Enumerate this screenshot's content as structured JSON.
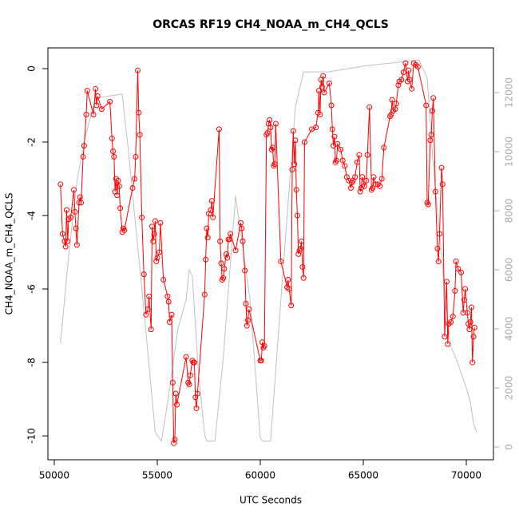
{
  "chart_data": {
    "type": "line",
    "title": "ORCAS RF19 CH4_NOAA_m_CH4_QCLS",
    "x_label": "UTC Seconds",
    "y_label": "CH4_NOAA_m_CH4_QCLS",
    "xlim": [
      49690,
      71318
    ],
    "xticks": [
      50000,
      55000,
      60000,
      65000,
      70000
    ],
    "ylim": [
      -10.65,
      0.565
    ],
    "yticks": [
      0,
      -2,
      -4,
      -6,
      -8,
      -10
    ],
    "y2lim": [
      -432,
      13514
    ],
    "y2ticks": [
      0,
      2000,
      4000,
      6000,
      8000,
      10000,
      12000
    ],
    "series": [
      {
        "color": "#ff0000",
        "marker": "circle",
        "x": [
          50300,
          50400,
          50500,
          50550,
          50600,
          50650,
          50700,
          50800,
          50950,
          51000,
          51050,
          51100,
          51200,
          51250,
          51300,
          51400,
          51450,
          51550,
          51600,
          51900,
          52000,
          52050,
          52100,
          52300,
          52700,
          52800,
          52850,
          52900,
          52950,
          53000,
          53050,
          53100,
          53150,
          53200,
          53300,
          53350,
          53400,
          53800,
          53900,
          53950,
          54050,
          54100,
          54150,
          54250,
          54350,
          54450,
          54550,
          54600,
          54700,
          54750,
          54800,
          54850,
          54900,
          54950,
          55000,
          55100,
          55150,
          55300,
          55500,
          55550,
          55600,
          55700,
          55750,
          55800,
          55850,
          55900,
          55950,
          56400,
          56500,
          56550,
          56600,
          56700,
          56750,
          56800,
          56850,
          56900,
          56950,
          57300,
          57350,
          57400,
          57450,
          57500,
          57600,
          57650,
          57700,
          58000,
          58050,
          58100,
          58150,
          58200,
          58250,
          58350,
          58400,
          58450,
          58500,
          58550,
          58800,
          59050,
          59100,
          59150,
          59250,
          59300,
          59350,
          59400,
          59450,
          60000,
          60050,
          60100,
          60150,
          60200,
          60300,
          60350,
          60400,
          60450,
          60500,
          60550,
          60600,
          60650,
          60700,
          60750,
          61000,
          61300,
          61350,
          61400,
          61500,
          61550,
          61600,
          61650,
          61700,
          61750,
          61800,
          61850,
          61900,
          61950,
          62000,
          62050,
          62100,
          62150,
          62500,
          62700,
          62800,
          62850,
          62900,
          62950,
          63000,
          63050,
          63100,
          63350,
          63450,
          63500,
          63550,
          63600,
          63650,
          63700,
          63750,
          63900,
          64000,
          64100,
          64200,
          64300,
          64400,
          64450,
          64500,
          64600,
          64700,
          64800,
          64850,
          64900,
          64950,
          65050,
          65150,
          65200,
          65300,
          65400,
          65450,
          65500,
          65600,
          65700,
          65800,
          65900,
          66000,
          66300,
          66350,
          66400,
          66450,
          66550,
          66600,
          66700,
          66750,
          66850,
          66950,
          67050,
          67150,
          67200,
          67250,
          67350,
          67450,
          67550,
          67650,
          68050,
          68100,
          68150,
          68250,
          68300,
          68350,
          68400,
          68500,
          68600,
          68650,
          68700,
          68800,
          68850,
          68950,
          69050,
          69100,
          69150,
          69250,
          69350,
          69450,
          69500,
          69600,
          69750,
          69850,
          69900,
          69950,
          70050,
          70100,
          70150,
          70200,
          70250,
          70300,
          70350,
          70400
        ],
        "values": [
          -3.15,
          -4.5,
          -4.7,
          -4.85,
          -3.85,
          -4.7,
          -4.1,
          -4.05,
          -3.3,
          -3.9,
          -4.35,
          -4.8,
          -3.65,
          -3.5,
          -3.65,
          -2.4,
          -2.1,
          -1.25,
          -0.6,
          -1.25,
          -0.55,
          -1.0,
          -0.75,
          -1.1,
          -0.9,
          -1.9,
          -2.25,
          -2.4,
          -3.35,
          -3.0,
          -3.45,
          -3.05,
          -3.2,
          -3.8,
          -4.45,
          -4.35,
          -4.4,
          -3.25,
          -3.0,
          -2.4,
          -0.05,
          -1.2,
          -1.8,
          -4.05,
          -5.6,
          -6.7,
          -6.55,
          -6.2,
          -7.1,
          -4.3,
          -4.7,
          -4.5,
          -4.15,
          -5.25,
          -5.15,
          -5.0,
          -4.2,
          -5.75,
          -6.2,
          -6.35,
          -6.9,
          -6.7,
          -8.55,
          -10.2,
          -10.1,
          -8.85,
          -9.15,
          -7.85,
          -8.55,
          -8.6,
          -8.35,
          -7.95,
          -8.0,
          -8.0,
          -8.95,
          -9.25,
          -8.85,
          -6.15,
          -5.2,
          -4.35,
          -4.6,
          -3.95,
          -3.85,
          -3.6,
          -4.05,
          -1.65,
          -4.7,
          -5.3,
          -5.75,
          -5.7,
          -5.45,
          -5.05,
          -5.15,
          -4.65,
          -4.65,
          -4.5,
          -4.95,
          -4.2,
          -4.35,
          -4.7,
          -5.5,
          -6.4,
          -7.0,
          -6.85,
          -6.55,
          -7.95,
          -7.95,
          -7.45,
          -7.6,
          -7.55,
          -1.8,
          -1.75,
          -1.5,
          -1.4,
          -1.6,
          -2.2,
          -2.15,
          -2.65,
          -2.6,
          -1.5,
          -5.25,
          -5.95,
          -5.75,
          -6.0,
          -6.45,
          -2.75,
          -1.7,
          -2.6,
          -1.95,
          -3.3,
          -4.0,
          -5.05,
          -4.95,
          -4.9,
          -4.7,
          -5.4,
          -5.7,
          -2.0,
          -1.65,
          -1.6,
          -1.2,
          -0.6,
          -1.25,
          -0.3,
          -0.5,
          -0.2,
          -0.65,
          -0.4,
          -1.0,
          -1.65,
          -2.1,
          -1.85,
          -2.55,
          -2.5,
          -2.05,
          -2.2,
          -2.5,
          -2.65,
          -2.95,
          -3.05,
          -3.25,
          -3.1,
          -3.05,
          -2.95,
          -2.55,
          -2.35,
          -3.35,
          -3.25,
          -2.95,
          -3.2,
          -3.05,
          -2.35,
          -1.05,
          -3.3,
          -3.25,
          -2.95,
          -3.15,
          -3.15,
          -3.2,
          -3.0,
          -2.15,
          -1.3,
          -1.25,
          -0.85,
          -1.15,
          -1.1,
          -0.95,
          -0.45,
          -0.35,
          -0.3,
          -0.1,
          0.15,
          -0.35,
          -0.05,
          -0.3,
          -0.55,
          0.15,
          0.1,
          0.05,
          -1.0,
          -3.65,
          -3.7,
          -1.95,
          -1.8,
          -1.15,
          -0.8,
          -3.35,
          -4.9,
          -5.25,
          -4.5,
          -2.7,
          -3.15,
          -7.3,
          -5.8,
          -7.5,
          -6.95,
          -6.9,
          -6.75,
          -6.05,
          -5.25,
          -5.45,
          -5.55,
          -6.65,
          -6.3,
          -6.0,
          -6.65,
          -6.95,
          -7.1,
          -6.9,
          -6.5,
          -8.0,
          -7.3,
          -7.05
        ]
      },
      {
        "color": "#c0c0c0",
        "axis": "y2",
        "x": [
          50300,
          50700,
          51100,
          51500,
          52000,
          52300,
          53300,
          53600,
          54300,
          54900,
          55200,
          55500,
          56000,
          56400,
          56550,
          56700,
          57000,
          57300,
          57400,
          57800,
          58200,
          58800,
          59000,
          59500,
          60000,
          60100,
          60500,
          61000,
          61700,
          62100,
          62500,
          63300,
          65000,
          67700,
          68100,
          68400,
          68800,
          69200,
          69500,
          70000,
          70200,
          70350,
          70500
        ],
        "values": [
          3500,
          6500,
          9000,
          10500,
          11800,
          11850,
          11950,
          10000,
          5000,
          500,
          200,
          1500,
          4000,
          5000,
          6000,
          5800,
          2500,
          400,
          200,
          200,
          3000,
          8500,
          7500,
          5000,
          300,
          200,
          200,
          5000,
          11500,
          12700,
          12700,
          12700,
          12900,
          13100,
          12500,
          9500,
          6500,
          3500,
          3000,
          2000,
          1500,
          800,
          500
        ]
      }
    ]
  }
}
